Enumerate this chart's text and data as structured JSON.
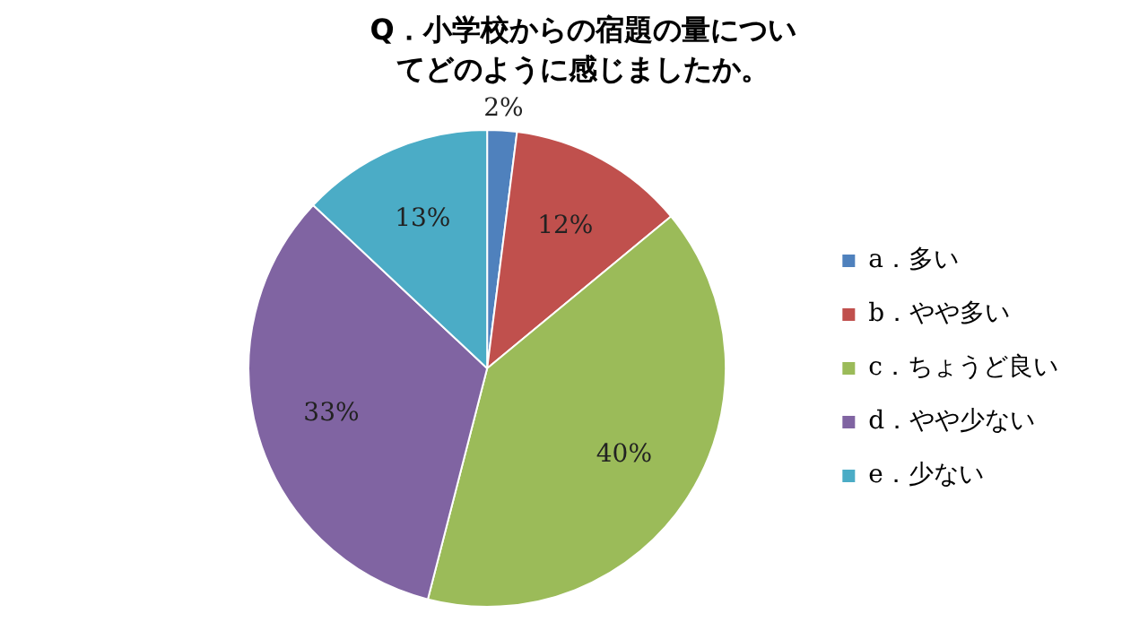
{
  "chart_data": {
    "type": "pie",
    "title": "Q．小学校からの宿題の量についてどのように感じましたか。",
    "categories": [
      "a．多い",
      "b．やや多い",
      "c．ちょうど良い",
      "d．やや少ない",
      "e．少ない"
    ],
    "values": [
      2,
      12,
      40,
      33,
      13
    ],
    "colors": [
      "#4f81bd",
      "#c0504d",
      "#9bbb59",
      "#8064a2",
      "#4bacc6"
    ],
    "value_labels": [
      "2%",
      "12%",
      "40%",
      "33%",
      "13%"
    ],
    "legend": "right"
  }
}
